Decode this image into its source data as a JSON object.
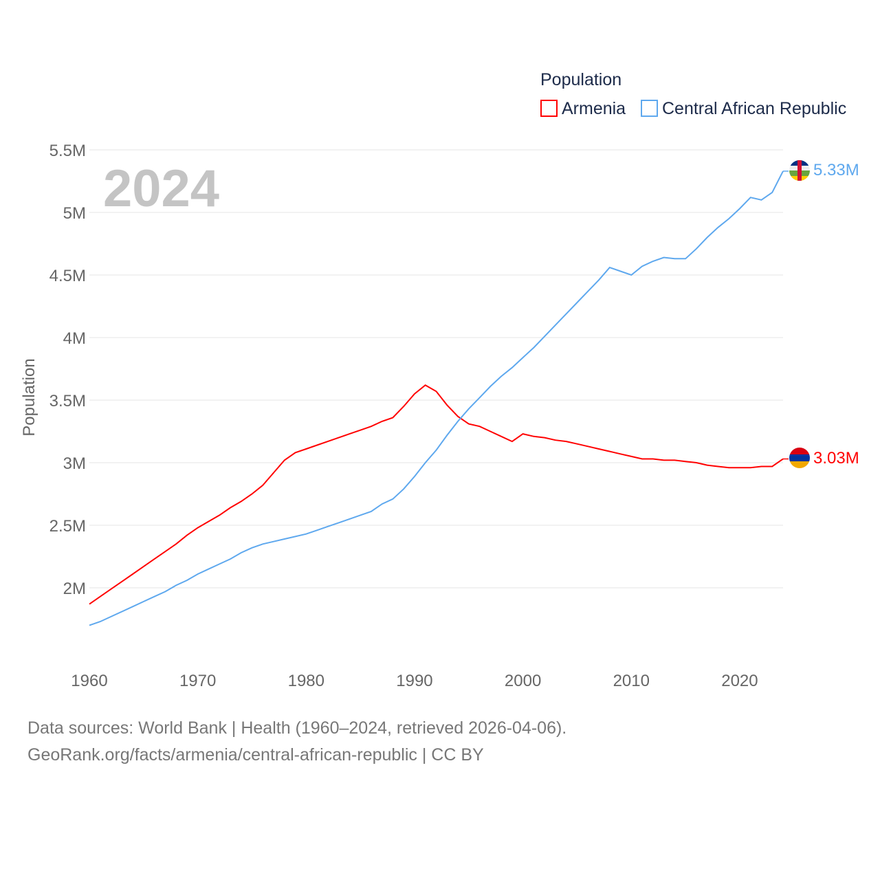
{
  "chart_data": {
    "type": "line",
    "title": "",
    "xlabel": "",
    "ylabel": "Population",
    "xlim": [
      1960,
      2024
    ],
    "ylim": [
      1.5,
      5.5
    ],
    "x_ticks": [
      "1960",
      "1970",
      "1980",
      "1990",
      "2000",
      "2010",
      "2020"
    ],
    "y_ticks": [
      {
        "v": 5.5,
        "label": "5.5M"
      },
      {
        "v": 5,
        "label": "5M"
      },
      {
        "v": 4.5,
        "label": "4.5M"
      },
      {
        "v": 4,
        "label": "4M"
      },
      {
        "v": 3.5,
        "label": "3.5M"
      },
      {
        "v": 3,
        "label": "3M"
      },
      {
        "v": 2.5,
        "label": "2.5M"
      },
      {
        "v": 2,
        "label": "2M"
      }
    ],
    "grid": true,
    "legend": {
      "title": "Population",
      "placement": "top-right"
    },
    "current_year_label": "2024",
    "x_start": 1960,
    "series": [
      {
        "name": "Armenia",
        "color": "#ff0000",
        "end_label": "3.03M",
        "flag": "armenia-flag",
        "values": [
          1.87,
          1.93,
          1.99,
          2.05,
          2.11,
          2.17,
          2.23,
          2.29,
          2.35,
          2.42,
          2.48,
          2.53,
          2.58,
          2.64,
          2.69,
          2.75,
          2.82,
          2.92,
          3.02,
          3.08,
          3.11,
          3.14,
          3.17,
          3.2,
          3.23,
          3.26,
          3.29,
          3.33,
          3.36,
          3.45,
          3.55,
          3.62,
          3.57,
          3.46,
          3.37,
          3.31,
          3.29,
          3.25,
          3.21,
          3.17,
          3.23,
          3.21,
          3.2,
          3.18,
          3.17,
          3.15,
          3.13,
          3.11,
          3.09,
          3.07,
          3.05,
          3.03,
          3.03,
          3.02,
          3.02,
          3.01,
          3.0,
          2.98,
          2.97,
          2.96,
          2.96,
          2.96,
          2.97,
          2.97,
          3.03
        ]
      },
      {
        "name": "Central African Republic",
        "color": "#5ea8ee",
        "end_label": "5.33M",
        "flag": "central-african-republic-flag",
        "values": [
          1.7,
          1.73,
          1.77,
          1.81,
          1.85,
          1.89,
          1.93,
          1.97,
          2.02,
          2.06,
          2.11,
          2.15,
          2.19,
          2.23,
          2.28,
          2.32,
          2.35,
          2.37,
          2.39,
          2.41,
          2.43,
          2.46,
          2.49,
          2.52,
          2.55,
          2.58,
          2.61,
          2.67,
          2.71,
          2.79,
          2.89,
          3.0,
          3.1,
          3.22,
          3.33,
          3.43,
          3.52,
          3.61,
          3.69,
          3.76,
          3.84,
          3.92,
          4.01,
          4.1,
          4.19,
          4.28,
          4.37,
          4.46,
          4.56,
          4.53,
          4.5,
          4.57,
          4.61,
          4.64,
          4.63,
          4.63,
          4.71,
          4.8,
          4.88,
          4.95,
          5.03,
          5.12,
          5.1,
          5.16,
          5.33
        ]
      }
    ]
  },
  "footer": {
    "line1": "Data sources: World Bank | Health (1960–2024, retrieved 2026-04-06).",
    "line2": "GeoRank.org/facts/armenia/central-african-republic | CC BY"
  }
}
